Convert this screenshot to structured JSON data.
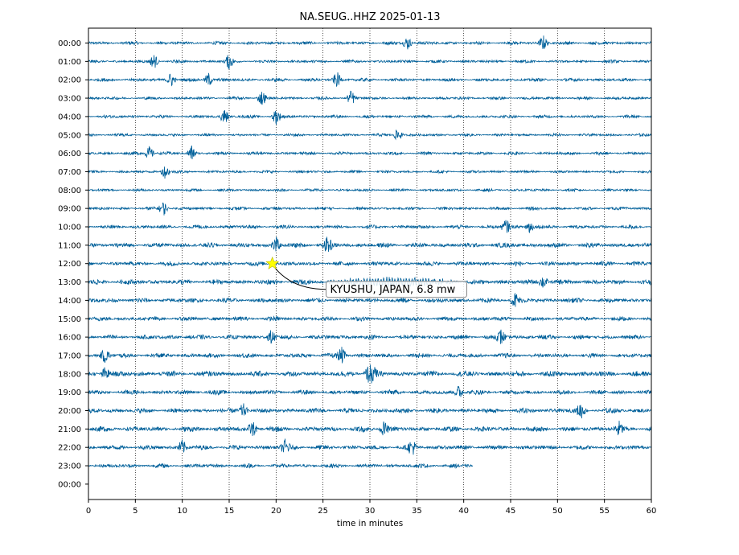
{
  "chart_data": {
    "type": "line",
    "title": "NA.SEUG..HHZ 2025-01-13",
    "xlabel": "time in minutes",
    "ylabel": "",
    "xlim": [
      0,
      60
    ],
    "x_ticks": [
      0,
      5,
      10,
      15,
      20,
      25,
      30,
      35,
      40,
      45,
      50,
      55,
      60
    ],
    "grid": "vertical dotted lines at x ticks",
    "line_color": "#00609a",
    "row_labels": [
      "00:00",
      "01:00",
      "02:00",
      "03:00",
      "04:00",
      "05:00",
      "06:00",
      "07:00",
      "08:00",
      "09:00",
      "10:00",
      "11:00",
      "12:00",
      "13:00",
      "14:00",
      "15:00",
      "16:00",
      "17:00",
      "18:00",
      "19:00",
      "20:00",
      "21:00",
      "22:00",
      "23:00",
      "00:00"
    ],
    "traces": [
      {
        "row": 0,
        "end_minute": 60,
        "amplitude": 0.18,
        "spikes": [
          34.0,
          48.5
        ]
      },
      {
        "row": 1,
        "end_minute": 60,
        "amplitude": 0.16,
        "spikes": [
          7.0,
          15.0
        ]
      },
      {
        "row": 2,
        "end_minute": 60,
        "amplitude": 0.18,
        "spikes": [
          8.8,
          12.8,
          26.5
        ]
      },
      {
        "row": 3,
        "end_minute": 60,
        "amplitude": 0.16,
        "spikes": [
          18.5,
          28.0
        ]
      },
      {
        "row": 4,
        "end_minute": 60,
        "amplitude": 0.17,
        "spikes": [
          14.5,
          20.0
        ]
      },
      {
        "row": 5,
        "end_minute": 60,
        "amplitude": 0.15,
        "spikes": [
          33.0
        ]
      },
      {
        "row": 6,
        "end_minute": 60,
        "amplitude": 0.17,
        "spikes": [
          6.5,
          11.0
        ]
      },
      {
        "row": 7,
        "end_minute": 60,
        "amplitude": 0.15,
        "spikes": [
          8.2
        ]
      },
      {
        "row": 8,
        "end_minute": 60,
        "amplitude": 0.15,
        "spikes": []
      },
      {
        "row": 9,
        "end_minute": 60,
        "amplitude": 0.17,
        "spikes": [
          8.0
        ]
      },
      {
        "row": 10,
        "end_minute": 60,
        "amplitude": 0.2,
        "spikes": [
          44.5,
          47.0
        ]
      },
      {
        "row": 11,
        "end_minute": 60,
        "amplitude": 0.26,
        "spikes": [
          20.0,
          25.5
        ]
      },
      {
        "row": 12,
        "end_minute": 60,
        "amplitude": 0.24,
        "spikes": []
      },
      {
        "row": 13,
        "end_minute": 60,
        "amplitude": 0.27,
        "spikes": [
          48.5
        ],
        "wave_packet": [
          25.0,
          40.0
        ]
      },
      {
        "row": 14,
        "end_minute": 60,
        "amplitude": 0.26,
        "spikes": [
          45.5
        ]
      },
      {
        "row": 15,
        "end_minute": 60,
        "amplitude": 0.24,
        "spikes": []
      },
      {
        "row": 16,
        "end_minute": 60,
        "amplitude": 0.24,
        "spikes": [
          19.5,
          44.0
        ]
      },
      {
        "row": 17,
        "end_minute": 60,
        "amplitude": 0.25,
        "spikes": [
          1.8,
          27.0
        ]
      },
      {
        "row": 18,
        "end_minute": 60,
        "amplitude": 0.3,
        "spikes": [
          1.8,
          29.8,
          30.3
        ]
      },
      {
        "row": 19,
        "end_minute": 60,
        "amplitude": 0.25,
        "spikes": [
          39.5
        ]
      },
      {
        "row": 20,
        "end_minute": 60,
        "amplitude": 0.26,
        "spikes": [
          16.5,
          52.5
        ]
      },
      {
        "row": 21,
        "end_minute": 60,
        "amplitude": 0.28,
        "spikes": [
          17.5,
          31.5,
          56.5
        ]
      },
      {
        "row": 22,
        "end_minute": 60,
        "amplitude": 0.25,
        "spikes": [
          10.0,
          21.0,
          34.5
        ]
      },
      {
        "row": 23,
        "end_minute": 41,
        "amplitude": 0.22,
        "spikes": []
      }
    ],
    "annotation": {
      "text": "KYUSHU, JAPAN, 6.8 mw",
      "event_row": 12,
      "event_minute": 19.6,
      "marker": "star",
      "marker_color": "#ffff00",
      "label_row": 13.4,
      "label_minute": 25.5
    }
  }
}
